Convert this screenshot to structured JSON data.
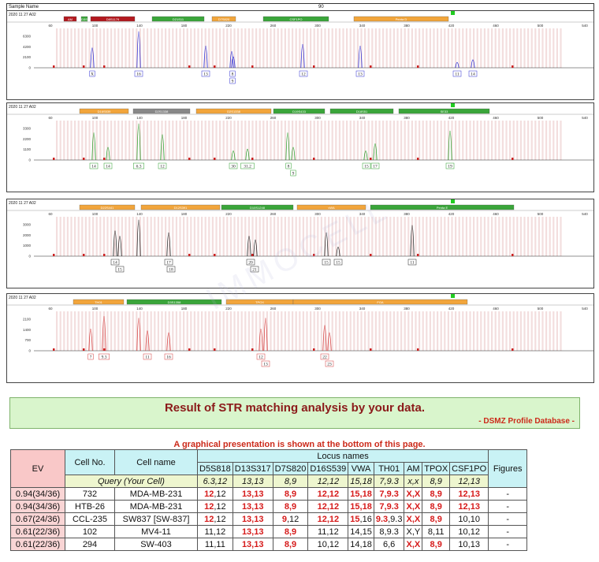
{
  "header": {
    "sample_label": "Sample Name",
    "center_label": "90"
  },
  "panels": [
    {
      "id": "blue",
      "color": "#2a2ad0",
      "timestamp": "2020 11 27 A02",
      "loci": [
        {
          "name": "AM",
          "color": "#b3191f",
          "start": 72,
          "end": 88
        },
        {
          "name": "D3S",
          "color": "#3aa53a",
          "start": 94,
          "end": 102
        },
        {
          "name": "D8S1179",
          "color": "#b3191f",
          "start": 106,
          "end": 162
        },
        {
          "name": "D21S11",
          "color": "#3aa53a",
          "start": 184,
          "end": 250
        },
        {
          "name": "D7S820",
          "color": "#f2a53b",
          "start": 260,
          "end": 290
        },
        {
          "name": "CSF1PO",
          "color": "#3aa53a",
          "start": 325,
          "end": 408
        },
        {
          "name": "Penta D",
          "color": "#f2a53b",
          "start": 440,
          "end": 560
        }
      ],
      "ytick_labels": [
        "6300",
        "4200",
        "2100",
        "0"
      ],
      "peaks": [
        {
          "x": 108,
          "h": 0.55
        },
        {
          "x": 167,
          "h": 1.0
        },
        {
          "x": 252,
          "h": 0.6
        },
        {
          "x": 285,
          "h": 0.45
        },
        {
          "x": 287,
          "h": 0.3
        },
        {
          "x": 375,
          "h": 0.65
        },
        {
          "x": 448,
          "h": 0.6
        },
        {
          "x": 571,
          "h": 0.15
        },
        {
          "x": 591,
          "h": 0.22
        }
      ],
      "allele_labels": [
        {
          "x": 108,
          "text": "X",
          "row": 0
        },
        {
          "x": 167,
          "text": "16",
          "row": 0
        },
        {
          "x": 252,
          "text": "13",
          "row": 0
        },
        {
          "x": 286,
          "text": "8",
          "row": 0
        },
        {
          "x": 286,
          "text": "9",
          "row": 1
        },
        {
          "x": 376,
          "text": "12",
          "row": 0
        },
        {
          "x": 448,
          "text": "13",
          "row": 0
        },
        {
          "x": 571,
          "text": "11",
          "row": 0
        },
        {
          "x": 591,
          "text": "14",
          "row": 0
        }
      ]
    },
    {
      "id": "green",
      "color": "#2a9d2a",
      "timestamp": "2020 11 27 A02",
      "loci": [
        {
          "name": "D16S539",
          "color": "#f2a53b",
          "start": 92,
          "end": 154
        },
        {
          "name": "D2S1338",
          "color": "#888888",
          "start": 160,
          "end": 232
        },
        {
          "name": "D2S1338",
          "color": "#f2a53b",
          "start": 240,
          "end": 335
        },
        {
          "name": "D19S433",
          "color": "#3aa53a",
          "start": 338,
          "end": 403
        },
        {
          "name": "D18S51",
          "color": "#3aa53a",
          "start": 410,
          "end": 490
        },
        {
          "name": "SE33",
          "color": "#3aa53a",
          "start": 497,
          "end": 612
        }
      ],
      "ytick_labels": [
        "3300",
        "2200",
        "1100",
        "0"
      ],
      "peaks": [
        {
          "x": 110,
          "h": 0.75
        },
        {
          "x": 128,
          "h": 0.35
        },
        {
          "x": 167,
          "h": 1.0
        },
        {
          "x": 197,
          "h": 0.7
        },
        {
          "x": 287,
          "h": 0.25
        },
        {
          "x": 305,
          "h": 0.3
        },
        {
          "x": 356,
          "h": 0.75
        },
        {
          "x": 363,
          "h": 0.35
        },
        {
          "x": 455,
          "h": 0.25
        },
        {
          "x": 467,
          "h": 0.45
        },
        {
          "x": 562,
          "h": 0.8
        }
      ],
      "allele_labels": [
        {
          "x": 110,
          "text": "14",
          "row": 0
        },
        {
          "x": 128,
          "text": "14",
          "row": 0
        },
        {
          "x": 167,
          "text": "6.3",
          "row": 0
        },
        {
          "x": 197,
          "text": "12",
          "row": 0
        },
        {
          "x": 287,
          "text": "30",
          "row": 0
        },
        {
          "x": 305,
          "text": "31.2",
          "row": 0
        },
        {
          "x": 357,
          "text": "8",
          "row": 0
        },
        {
          "x": 363,
          "text": "9",
          "row": 1
        },
        {
          "x": 456,
          "text": "15",
          "row": 0
        },
        {
          "x": 467,
          "text": "17",
          "row": 0
        },
        {
          "x": 562,
          "text": "19",
          "row": 0
        }
      ]
    },
    {
      "id": "black",
      "color": "#222222",
      "timestamp": "2020 11 27 A02",
      "loci": [
        {
          "name": "D22S441",
          "color": "#f2a53b",
          "start": 92,
          "end": 162
        },
        {
          "name": "D12S391",
          "color": "#f2a53b",
          "start": 170,
          "end": 270
        },
        {
          "name": "D10S1248",
          "color": "#3aa53a",
          "start": 272,
          "end": 363
        },
        {
          "name": "vWA",
          "color": "#f2a53b",
          "start": 368,
          "end": 455
        },
        {
          "name": "Penta E",
          "color": "#3aa53a",
          "start": 461,
          "end": 643
        }
      ],
      "ytick_labels": [
        "3000",
        "2000",
        "1000",
        "0"
      ],
      "peaks": [
        {
          "x": 137,
          "h": 0.7
        },
        {
          "x": 143,
          "h": 0.55
        },
        {
          "x": 167,
          "h": 1.0
        },
        {
          "x": 205,
          "h": 0.65
        },
        {
          "x": 307,
          "h": 0.55
        },
        {
          "x": 315,
          "h": 0.45
        },
        {
          "x": 405,
          "h": 0.65
        },
        {
          "x": 420,
          "h": 0.25
        },
        {
          "x": 514,
          "h": 0.85
        }
      ],
      "allele_labels": [
        {
          "x": 137,
          "text": "14",
          "row": 0
        },
        {
          "x": 143,
          "text": "15",
          "row": 1
        },
        {
          "x": 205,
          "text": "17",
          "row": 0
        },
        {
          "x": 208,
          "text": "18",
          "row": 1
        },
        {
          "x": 309,
          "text": "20",
          "row": 0
        },
        {
          "x": 314,
          "text": "21",
          "row": 1
        },
        {
          "x": 405,
          "text": "15",
          "row": 0
        },
        {
          "x": 420,
          "text": "15",
          "row": 0
        },
        {
          "x": 514,
          "text": "11",
          "row": 0
        }
      ]
    },
    {
      "id": "red",
      "color": "#d43a3a",
      "timestamp": "2020 11 27 A02",
      "loci": [
        {
          "name": "TH01",
          "color": "#f2a53b",
          "start": 84,
          "end": 148
        },
        {
          "name": "D3S1358",
          "color": "#3aa53a",
          "start": 152,
          "end": 272
        },
        {
          "name": "TPOX",
          "color": "#f2a53b",
          "start": 278,
          "end": 363
        },
        {
          "name": "FGA",
          "color": "#f2a53b",
          "start": 363,
          "end": 584
        }
      ],
      "ytick_labels": [
        "2100",
        "1400",
        "700",
        "0"
      ],
      "peaks": [
        {
          "x": 106,
          "h": 0.6
        },
        {
          "x": 123,
          "h": 0.95
        },
        {
          "x": 167,
          "h": 0.9
        },
        {
          "x": 178,
          "h": 0.55
        },
        {
          "x": 205,
          "h": 0.5
        },
        {
          "x": 322,
          "h": 0.6
        },
        {
          "x": 328,
          "h": 0.9
        },
        {
          "x": 403,
          "h": 0.7
        },
        {
          "x": 409,
          "h": 0.5
        }
      ],
      "allele_labels": [
        {
          "x": 106,
          "text": "7",
          "row": 0
        },
        {
          "x": 123,
          "text": "9.3",
          "row": 0
        },
        {
          "x": 178,
          "text": "11",
          "row": 0
        },
        {
          "x": 205,
          "text": "16",
          "row": 0
        },
        {
          "x": 322,
          "text": "12",
          "row": 0
        },
        {
          "x": 328,
          "text": "13",
          "row": 1
        },
        {
          "x": 403,
          "text": "22",
          "row": 0
        },
        {
          "x": 409,
          "text": "23",
          "row": 1
        }
      ]
    }
  ],
  "x_ticks": [
    "60",
    "100",
    "140",
    "180",
    "220",
    "260",
    "300",
    "340",
    "380",
    "420",
    "460",
    "500",
    "540"
  ],
  "watermark": "IMMOCELL",
  "result": {
    "title": "Result of STR matching analysis by your data.",
    "subtitle": "- DSMZ Profile Database -"
  },
  "graph_note": "A graphical presentation is shown at the bottom of this page.",
  "table": {
    "h_ev": "EV",
    "h_cellno": "Cell No.",
    "h_cellname": "Cell name",
    "h_locus": "Locus names",
    "h_figures": "Figures",
    "loci": [
      "D5S818",
      "D13S317",
      "D7S820",
      "D16S539",
      "VWA",
      "TH01",
      "AM",
      "TPOX",
      "CSF1PO"
    ],
    "query_label": "Query (Your Cell)",
    "query": [
      "6.3,12",
      "13,13",
      "8,9",
      "12,12",
      "15,18",
      "7,9.3",
      "x,x",
      "8,9",
      "12,13"
    ],
    "rows": [
      {
        "ev": "0.94(34/36)",
        "no": "732",
        "name": "MDA-MB-231",
        "fig": "-",
        "cells": [
          [
            [
              "12",
              1
            ],
            [
              ",12",
              0
            ]
          ],
          [
            [
              "13,13",
              1
            ]
          ],
          [
            [
              "8,9",
              1
            ]
          ],
          [
            [
              "12,12",
              1
            ]
          ],
          [
            [
              "15,18",
              1
            ]
          ],
          [
            [
              "7,9.3",
              1
            ]
          ],
          [
            [
              "X,X",
              1
            ]
          ],
          [
            [
              "8,9",
              1
            ]
          ],
          [
            [
              "12,13",
              1
            ]
          ]
        ]
      },
      {
        "ev": "0.94(34/36)",
        "no": "HTB-26",
        "name": "MDA-MB-231",
        "fig": "-",
        "cells": [
          [
            [
              "12",
              1
            ],
            [
              ",12",
              0
            ]
          ],
          [
            [
              "13,13",
              1
            ]
          ],
          [
            [
              "8,9",
              1
            ]
          ],
          [
            [
              "12,12",
              1
            ]
          ],
          [
            [
              "15,18",
              1
            ]
          ],
          [
            [
              "7,9.3",
              1
            ]
          ],
          [
            [
              "X,X",
              1
            ]
          ],
          [
            [
              "8,9",
              1
            ]
          ],
          [
            [
              "12,13",
              1
            ]
          ]
        ]
      },
      {
        "ev": "0.67(24/36)",
        "no": "CCL-235",
        "name": "SW837 [SW-837]",
        "fig": "-",
        "cells": [
          [
            [
              "12",
              1
            ],
            [
              ",12",
              0
            ]
          ],
          [
            [
              "13,13",
              1
            ]
          ],
          [
            [
              "9",
              1
            ],
            [
              ",12",
              0
            ]
          ],
          [
            [
              "12,12",
              1
            ]
          ],
          [
            [
              "15",
              1
            ],
            [
              ",16",
              0
            ]
          ],
          [
            [
              "9.3",
              1
            ],
            [
              ",9.3",
              0
            ]
          ],
          [
            [
              "X,X",
              1
            ]
          ],
          [
            [
              "8,9",
              1
            ]
          ],
          [
            [
              "10,10",
              0
            ]
          ]
        ]
      },
      {
        "ev": "0.61(22/36)",
        "no": "102",
        "name": "MV4-11",
        "fig": "-",
        "cells": [
          [
            [
              "11,12",
              0
            ]
          ],
          [
            [
              "13,13",
              1
            ]
          ],
          [
            [
              "8,9",
              1
            ]
          ],
          [
            [
              "11,12",
              0
            ]
          ],
          [
            [
              "14,15",
              0
            ]
          ],
          [
            [
              "8,9.3",
              0
            ]
          ],
          [
            [
              "X,Y",
              0
            ]
          ],
          [
            [
              "8,11",
              0
            ]
          ],
          [
            [
              "10,12",
              0
            ]
          ]
        ]
      },
      {
        "ev": "0.61(22/36)",
        "no": "294",
        "name": "SW-403",
        "fig": "-",
        "cells": [
          [
            [
              "11,11",
              0
            ]
          ],
          [
            [
              "13,13",
              1
            ]
          ],
          [
            [
              "8,9",
              1
            ]
          ],
          [
            [
              "10,12",
              0
            ]
          ],
          [
            [
              "14,18",
              0
            ]
          ],
          [
            [
              "6,6",
              0
            ]
          ],
          [
            [
              "X,X",
              1
            ]
          ],
          [
            [
              "8,9",
              1
            ]
          ],
          [
            [
              "10,13",
              0
            ]
          ]
        ]
      }
    ]
  }
}
